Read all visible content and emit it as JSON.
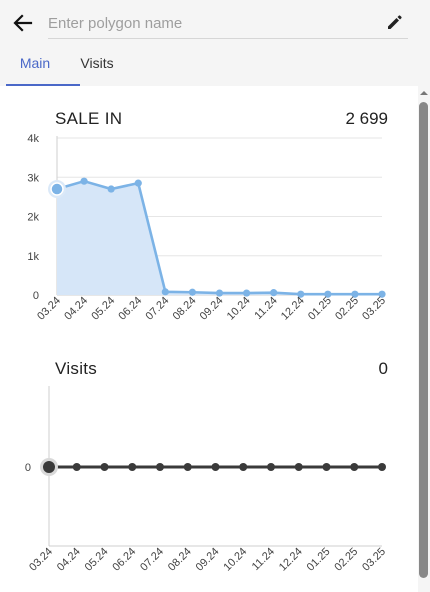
{
  "header": {
    "name_placeholder": "Enter polygon name",
    "name_value": "",
    "back_icon": "arrow-left-icon",
    "edit_icon": "pencil-icon"
  },
  "tabs": [
    {
      "label": "Main",
      "active": true
    },
    {
      "label": "Visits",
      "active": false
    }
  ],
  "colors": {
    "accent": "#4a68c8",
    "sale_line": "#7cb3e6",
    "sale_area": "#d6e6f8",
    "visits_line": "#3a3a3a"
  },
  "charts": {
    "sale": {
      "title": "SALE IN",
      "total": "2 699"
    },
    "visits": {
      "title": "Visits",
      "total": "0"
    }
  },
  "chart_data": [
    {
      "type": "area",
      "title": "SALE IN",
      "total": "2 699",
      "categories": [
        "03.24",
        "04.24",
        "05.24",
        "06.24",
        "07.24",
        "08.24",
        "09.24",
        "10.24",
        "11.24",
        "12.24",
        "01.25",
        "02.25",
        "03.25"
      ],
      "values": [
        2700,
        2900,
        2700,
        2850,
        80,
        70,
        50,
        50,
        60,
        20,
        20,
        20,
        20
      ],
      "yticks": [
        "0",
        "1k",
        "2k",
        "3k",
        "4k"
      ],
      "ylim": [
        0,
        4000
      ],
      "grid": true,
      "highlight_index": 0
    },
    {
      "type": "line",
      "title": "Visits",
      "total": "0",
      "categories": [
        "03.24",
        "04.24",
        "05.24",
        "06.24",
        "07.24",
        "08.24",
        "09.24",
        "10.24",
        "11.24",
        "12.24",
        "01.25",
        "02.25",
        "03.25"
      ],
      "values": [
        0,
        0,
        0,
        0,
        0,
        0,
        0,
        0,
        0,
        0,
        0,
        0,
        0
      ],
      "yticks": [
        "0"
      ],
      "grid": false,
      "highlight_index": 0
    }
  ]
}
